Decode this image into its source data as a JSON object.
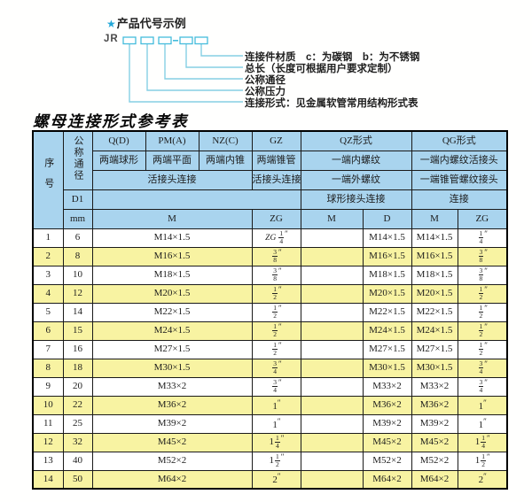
{
  "colors": {
    "header_bg": "#a9d4ee",
    "row_alt_bg": "#f8f3a2",
    "row_bg": "#ffffff",
    "border": "#1a1a1a",
    "leader_line": "#85cfe4",
    "box_border": "#45bcdc",
    "star": "#22a7d8",
    "text": "#1c1c1c"
  },
  "diagram": {
    "star": "★",
    "title": "产品代号示例",
    "code_prefix": "JR",
    "labels": [
      "连接件材质　c：为碳钢　b：为不锈钢",
      "总长（长度可根据用户要求定制）",
      "公称通径",
      "公称压力",
      "连接形式：见金属软管常用结构形式表"
    ]
  },
  "page_title": "螺母连接形式参考表",
  "table": {
    "header": {
      "seq": "序号",
      "dn": "公称通径",
      "d1": "D1",
      "mm": "mm",
      "col_qd": "Q(D)",
      "col_pm": "PM(A)",
      "col_nz": "NZ(C)",
      "col_gz": "GZ",
      "col_qz": "QZ形式",
      "col_qg": "QG形式",
      "qd_desc": "两端球形",
      "pm_desc": "两端平面",
      "nz_desc": "两端内锥",
      "gz_desc": "两端锥管",
      "qz_desc1": "一端内螺纹",
      "qg_desc1": "一端内螺纹活接头",
      "union_conn": "活接头连接",
      "gz_conn": "活接头连接",
      "qz_desc2": "一端外螺纹",
      "qg_desc2": "一端锥管螺纹接头",
      "qz_conn": "球形接头连接",
      "qg_conn": "连接",
      "m1": "M",
      "zg1": "ZG",
      "qz_m": "M",
      "qz_d": "D",
      "qg_m": "M",
      "qg_zg": "ZG"
    },
    "rows": [
      {
        "no": "1",
        "mm": "6",
        "m": "M14×1.5",
        "zg": {
          "prefix": "ZG",
          "num": "1",
          "den": "4",
          "suffix": "″"
        },
        "qz_m": "",
        "qz_d": "M14×1.5",
        "qg_m": "M14×1.5",
        "qg_zg": {
          "num": "1",
          "den": "4",
          "suffix": "″"
        }
      },
      {
        "no": "2",
        "mm": "8",
        "m": "M16×1.5",
        "zg": {
          "num": "3",
          "den": "8",
          "suffix": "″"
        },
        "qz_m": "",
        "qz_d": "M16×1.5",
        "qg_m": "M16×1.5",
        "qg_zg": {
          "num": "3",
          "den": "8",
          "suffix": "″"
        }
      },
      {
        "no": "3",
        "mm": "10",
        "m": "M18×1.5",
        "zg": {
          "num": "3",
          "den": "8",
          "suffix": "″"
        },
        "qz_m": "",
        "qz_d": "M18×1.5",
        "qg_m": "M18×1.5",
        "qg_zg": {
          "num": "3",
          "den": "8",
          "suffix": "″"
        }
      },
      {
        "no": "4",
        "mm": "12",
        "m": "M20×1.5",
        "zg": {
          "num": "1",
          "den": "2",
          "suffix": "″"
        },
        "qz_m": "",
        "qz_d": "M20×1.5",
        "qg_m": "M20×1.5",
        "qg_zg": {
          "num": "1",
          "den": "2",
          "suffix": "″"
        }
      },
      {
        "no": "5",
        "mm": "14",
        "m": "M22×1.5",
        "zg": {
          "num": "1",
          "den": "2",
          "suffix": "″"
        },
        "qz_m": "",
        "qz_d": "M22×1.5",
        "qg_m": "M22×1.5",
        "qg_zg": {
          "num": "1",
          "den": "2",
          "suffix": "″"
        }
      },
      {
        "no": "6",
        "mm": "15",
        "m": "M24×1.5",
        "zg": {
          "num": "1",
          "den": "2",
          "suffix": "″"
        },
        "qz_m": "",
        "qz_d": "M24×1.5",
        "qg_m": "M24×1.5",
        "qg_zg": {
          "num": "1",
          "den": "2",
          "suffix": "″"
        }
      },
      {
        "no": "7",
        "mm": "16",
        "m": "M27×1.5",
        "zg": {
          "num": "1",
          "den": "2",
          "suffix": "″"
        },
        "qz_m": "",
        "qz_d": "M27×1.5",
        "qg_m": "M27×1.5",
        "qg_zg": {
          "num": "1",
          "den": "2",
          "suffix": "″"
        }
      },
      {
        "no": "8",
        "mm": "18",
        "m": "M30×1.5",
        "zg": {
          "num": "3",
          "den": "4",
          "suffix": "″"
        },
        "qz_m": "",
        "qz_d": "M30×1.5",
        "qg_m": "M30×1.5",
        "qg_zg": {
          "num": "3",
          "den": "4",
          "suffix": "″"
        }
      },
      {
        "no": "9",
        "mm": "20",
        "m": "M33×2",
        "zg": {
          "num": "3",
          "den": "4",
          "suffix": "″"
        },
        "qz_m": "",
        "qz_d": "M33×2",
        "qg_m": "M33×2",
        "qg_zg": {
          "num": "3",
          "den": "4",
          "suffix": "″"
        }
      },
      {
        "no": "10",
        "mm": "22",
        "m": "M36×2",
        "zg": {
          "whole": "1",
          "suffix": "″"
        },
        "qz_m": "",
        "qz_d": "M36×2",
        "qg_m": "M36×2",
        "qg_zg": {
          "whole": "1",
          "suffix": "″"
        }
      },
      {
        "no": "11",
        "mm": "25",
        "m": "M39×2",
        "zg": {
          "whole": "1",
          "suffix": "″"
        },
        "qz_m": "",
        "qz_d": "M39×2",
        "qg_m": "M39×2",
        "qg_zg": {
          "whole": "1",
          "suffix": "″"
        }
      },
      {
        "no": "12",
        "mm": "32",
        "m": "M45×2",
        "zg": {
          "whole": "1",
          "num": "1",
          "den": "4",
          "suffix": "″"
        },
        "qz_m": "",
        "qz_d": "M45×2",
        "qg_m": "M45×2",
        "qg_zg": {
          "whole": "1",
          "num": "1",
          "den": "4",
          "suffix": "″"
        }
      },
      {
        "no": "13",
        "mm": "40",
        "m": "M52×2",
        "zg": {
          "whole": "1",
          "num": "1",
          "den": "2",
          "suffix": "″"
        },
        "qz_m": "",
        "qz_d": "M52×2",
        "qg_m": "M52×2",
        "qg_zg": {
          "whole": "1",
          "num": "1",
          "den": "2",
          "suffix": "″"
        }
      },
      {
        "no": "14",
        "mm": "50",
        "m": "M64×2",
        "zg": {
          "whole": "2",
          "suffix": "″"
        },
        "qz_m": "",
        "qz_d": "M64×2",
        "qg_m": "M64×2",
        "qg_zg": {
          "whole": "2",
          "suffix": "″"
        }
      }
    ]
  }
}
